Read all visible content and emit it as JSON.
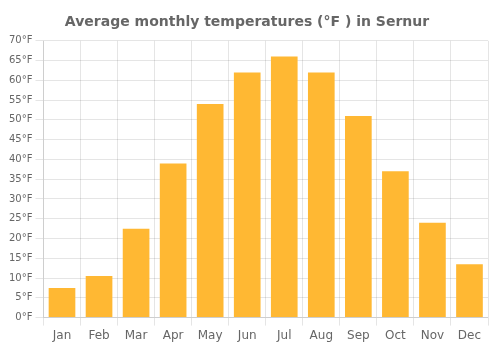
{
  "chart_data": {
    "type": "bar",
    "title": "Average monthly temperatures (°F ) in Sernur",
    "categories": [
      "Jan",
      "Feb",
      "Mar",
      "Apr",
      "May",
      "Jun",
      "Jul",
      "Aug",
      "Sep",
      "Oct",
      "Nov",
      "Dec"
    ],
    "values": [
      7.5,
      10.5,
      22.5,
      39,
      54,
      62,
      66,
      62,
      51,
      37,
      24,
      13.5
    ],
    "color": "#FFB833",
    "ylim": [
      0,
      70
    ],
    "yticks": [
      {
        "value": 0,
        "label": "0°F"
      },
      {
        "value": 5,
        "label": "5°F"
      },
      {
        "value": 10,
        "label": "10°F"
      },
      {
        "value": 15,
        "label": "15°F"
      },
      {
        "value": 20,
        "label": "20°F"
      },
      {
        "value": 25,
        "label": "25°F"
      },
      {
        "value": 30,
        "label": "30°F"
      },
      {
        "value": 35,
        "label": "35°F"
      },
      {
        "value": 40,
        "label": "40°F"
      },
      {
        "value": 45,
        "label": "45°F"
      },
      {
        "value": 50,
        "label": "50°F"
      },
      {
        "value": 55,
        "label": "55°F"
      },
      {
        "value": 60,
        "label": "60°F"
      },
      {
        "value": 65,
        "label": "65°F"
      },
      {
        "value": 70,
        "label": "70°F"
      }
    ],
    "grid": true
  }
}
